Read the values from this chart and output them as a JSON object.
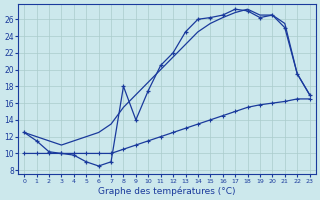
{
  "xlabel": "Graphe des températures (°C)",
  "background_color": "#cce8ec",
  "line_color": "#1a3a9c",
  "grid_color": "#aacccc",
  "xlim": [
    -0.5,
    23.5
  ],
  "ylim": [
    7.5,
    27.8
  ],
  "xticks": [
    0,
    1,
    2,
    3,
    4,
    5,
    6,
    7,
    8,
    9,
    10,
    11,
    12,
    13,
    14,
    15,
    16,
    17,
    18,
    19,
    20,
    21,
    22,
    23
  ],
  "yticks": [
    8,
    10,
    12,
    14,
    16,
    18,
    20,
    22,
    24,
    26
  ],
  "line1_x": [
    0,
    1,
    2,
    3,
    4,
    5,
    6,
    7,
    8,
    9,
    10,
    11,
    12,
    13,
    14,
    15,
    16,
    17,
    18,
    19,
    20,
    21,
    22,
    23
  ],
  "line1_y": [
    12.5,
    11.5,
    10.2,
    10.0,
    9.8,
    9.0,
    8.5,
    9.0,
    18.0,
    14.0,
    17.5,
    20.5,
    22.0,
    24.5,
    26.0,
    26.2,
    26.5,
    27.2,
    27.0,
    26.2,
    26.5,
    25.0,
    19.5,
    17.0
  ],
  "line2_x": [
    0,
    1,
    2,
    3,
    4,
    5,
    6,
    7,
    8,
    9,
    10,
    11,
    12,
    13,
    14,
    15,
    16,
    17,
    18,
    19,
    20,
    21,
    22,
    23
  ],
  "line2_y": [
    12.5,
    12.0,
    11.5,
    11.0,
    11.5,
    12.0,
    12.5,
    13.5,
    15.5,
    17.0,
    18.5,
    20.0,
    21.5,
    23.0,
    24.5,
    25.5,
    26.2,
    26.8,
    27.2,
    26.5,
    26.5,
    25.5,
    19.5,
    17.0
  ],
  "line3_x": [
    0,
    1,
    2,
    3,
    4,
    5,
    6,
    7,
    8,
    9,
    10,
    11,
    12,
    13,
    14,
    15,
    16,
    17,
    18,
    19,
    20,
    21,
    22,
    23
  ],
  "line3_y": [
    10.0,
    10.0,
    10.0,
    10.0,
    10.0,
    10.0,
    10.0,
    10.0,
    10.5,
    11.0,
    11.5,
    12.0,
    12.5,
    13.0,
    13.5,
    14.0,
    14.5,
    15.0,
    15.5,
    15.8,
    16.0,
    16.2,
    16.5,
    16.5
  ]
}
